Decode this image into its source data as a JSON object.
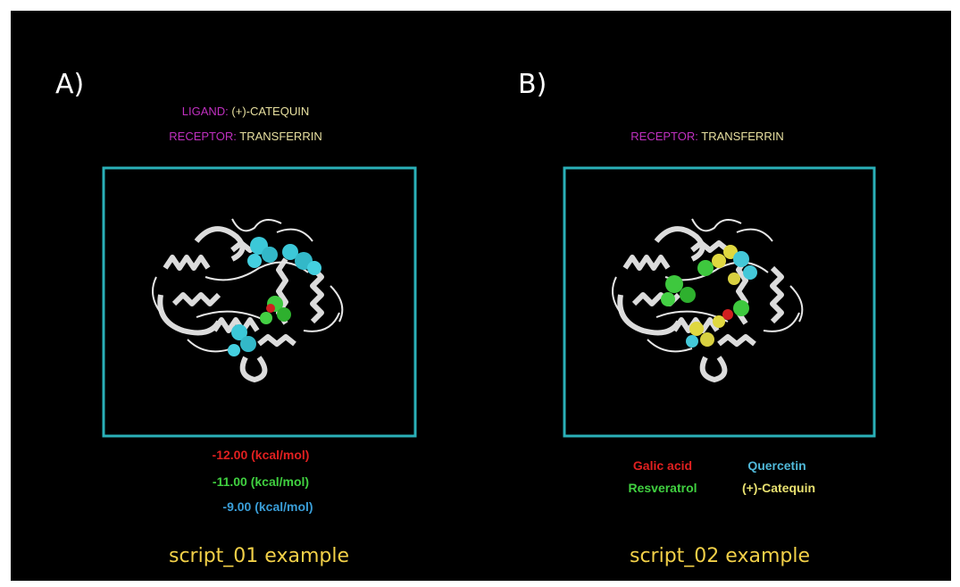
{
  "panels": [
    {
      "label": "A)",
      "header": [
        {
          "key": "LIGAND:",
          "value": "(+)-CATEQUIN"
        },
        {
          "key": "RECEPTOR:",
          "value": "TRANSFERRIN"
        }
      ],
      "energies": [
        "-12.00 (kcal/mol)",
        "-11.00 (kcal/mol)",
        "-9.00 (kcal/mol)"
      ],
      "caption": "script_01 example"
    },
    {
      "label": "B)",
      "header": [
        {
          "key": "RECEPTOR:",
          "value": "TRANSFERRIN"
        }
      ],
      "legend": [
        "Galic acid",
        "Quercetin",
        "Resveratrol",
        "(+)-Catequin"
      ],
      "caption": "script_02 example"
    }
  ]
}
